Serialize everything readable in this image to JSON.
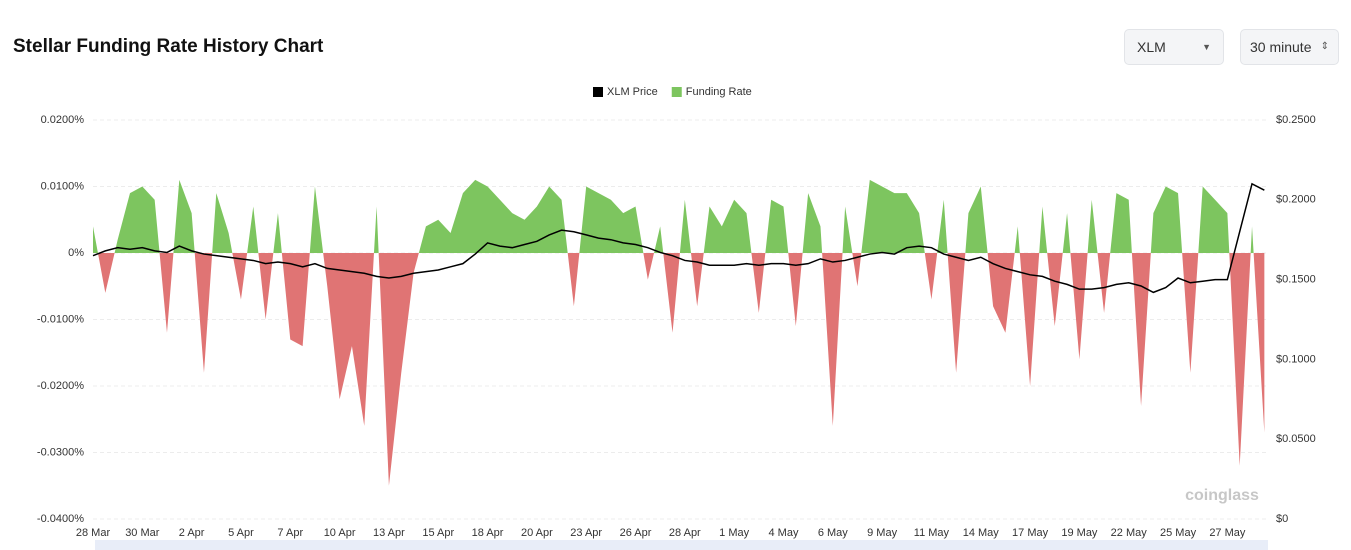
{
  "header": {
    "title": "Stellar Funding Rate History Chart",
    "symbol_select": "XLM",
    "interval_select": "30 minute"
  },
  "watermark": "coinglass",
  "chart_data": {
    "type": "funding",
    "categories": [
      "28 Mar",
      null,
      null,
      null,
      "30 Mar",
      null,
      null,
      null,
      "2 Apr",
      null,
      null,
      null,
      "5 Apr",
      null,
      null,
      null,
      "7 Apr",
      null,
      null,
      null,
      "10 Apr",
      null,
      null,
      null,
      "13 Apr",
      null,
      null,
      null,
      "15 Apr",
      null,
      null,
      null,
      "18 Apr",
      null,
      null,
      null,
      "20 Apr",
      null,
      null,
      null,
      "23 Apr",
      null,
      null,
      null,
      "26 Apr",
      null,
      null,
      null,
      "28 Apr",
      null,
      null,
      null,
      "1 May",
      null,
      null,
      null,
      "4 May",
      null,
      null,
      null,
      "6 May",
      null,
      null,
      null,
      "9 May",
      null,
      null,
      null,
      "11 May",
      null,
      null,
      null,
      "14 May",
      null,
      null,
      null,
      "17 May",
      null,
      null,
      null,
      "19 May",
      null,
      null,
      null,
      "22 May",
      null,
      null,
      null,
      "25 May",
      null,
      null,
      null,
      "27 May",
      null,
      null,
      null
    ],
    "series": [
      {
        "name": "XLM Price",
        "color": "#000000",
        "axis": "y2",
        "values": [
          0.165,
          0.168,
          0.17,
          0.169,
          0.17,
          0.168,
          0.167,
          0.171,
          0.168,
          0.166,
          0.165,
          0.164,
          0.163,
          0.162,
          0.16,
          0.161,
          0.16,
          0.158,
          0.16,
          0.157,
          0.156,
          0.155,
          0.154,
          0.152,
          0.151,
          0.152,
          0.154,
          0.155,
          0.156,
          0.158,
          0.16,
          0.166,
          0.173,
          0.171,
          0.17,
          0.172,
          0.174,
          0.178,
          0.181,
          0.18,
          0.178,
          0.176,
          0.175,
          0.173,
          0.172,
          0.17,
          0.167,
          0.165,
          0.162,
          0.161,
          0.159,
          0.159,
          0.159,
          0.16,
          0.159,
          0.16,
          0.16,
          0.159,
          0.16,
          0.163,
          0.161,
          0.162,
          0.164,
          0.166,
          0.167,
          0.166,
          0.17,
          0.171,
          0.17,
          0.166,
          0.164,
          0.162,
          0.164,
          0.16,
          0.157,
          0.155,
          0.153,
          0.152,
          0.149,
          0.147,
          0.144,
          0.144,
          0.145,
          0.147,
          0.148,
          0.146,
          0.142,
          0.145,
          0.151,
          0.148,
          0.149,
          0.15,
          0.15,
          0.18,
          0.21,
          0.206
        ]
      },
      {
        "name": "Funding Rate",
        "color": "#7dc55f",
        "negative_color": "#e07474",
        "values": [
          0.004,
          -0.006,
          0.002,
          0.009,
          0.01,
          0.008,
          -0.012,
          0.011,
          0.006,
          -0.018,
          0.009,
          0.003,
          -0.007,
          0.007,
          -0.01,
          0.006,
          -0.013,
          -0.014,
          0.01,
          -0.005,
          -0.022,
          -0.014,
          -0.026,
          0.007,
          -0.035,
          -0.018,
          -0.003,
          0.004,
          0.005,
          0.003,
          0.009,
          0.011,
          0.01,
          0.008,
          0.006,
          0.005,
          0.007,
          0.01,
          0.008,
          -0.008,
          0.01,
          0.009,
          0.008,
          0.006,
          0.007,
          -0.004,
          0.004,
          -0.012,
          0.008,
          -0.008,
          0.007,
          0.004,
          0.008,
          0.006,
          -0.009,
          0.008,
          0.007,
          -0.011,
          0.009,
          0.004,
          -0.026,
          0.007,
          -0.005,
          0.011,
          0.01,
          0.009,
          0.009,
          0.006,
          -0.007,
          0.008,
          -0.018,
          0.006,
          0.01,
          -0.008,
          -0.012,
          0.004,
          -0.02,
          0.007,
          -0.011,
          0.006,
          -0.016,
          0.008,
          -0.009,
          0.009,
          0.008,
          -0.023,
          0.006,
          0.01,
          0.009,
          -0.018,
          0.01,
          0.008,
          0.006,
          -0.032,
          0.004,
          -0.027
        ]
      }
    ],
    "ylim": [
      -0.04,
      0.02
    ],
    "yticks": [
      {
        "value": 0.02,
        "label": "0.0200%"
      },
      {
        "value": 0.01,
        "label": "0.0100%"
      },
      {
        "value": 0,
        "label": "0%"
      },
      {
        "value": -0.01,
        "label": "-0.0100%"
      },
      {
        "value": -0.02,
        "label": "-0.0200%"
      },
      {
        "value": -0.03,
        "label": "-0.0300%"
      },
      {
        "value": -0.04,
        "label": "-0.0400%"
      }
    ],
    "y2lim": [
      0,
      0.25
    ],
    "y2ticks": [
      {
        "value": 0.25,
        "label": "$0.2500"
      },
      {
        "value": 0.2,
        "label": "$0.2000"
      },
      {
        "value": 0.15,
        "label": "$0.1500"
      },
      {
        "value": 0.1,
        "label": "$0.1000"
      },
      {
        "value": 0.05,
        "label": "$0.0500"
      },
      {
        "value": 0,
        "label": "$0"
      }
    ],
    "grid": true,
    "legend": "top"
  }
}
